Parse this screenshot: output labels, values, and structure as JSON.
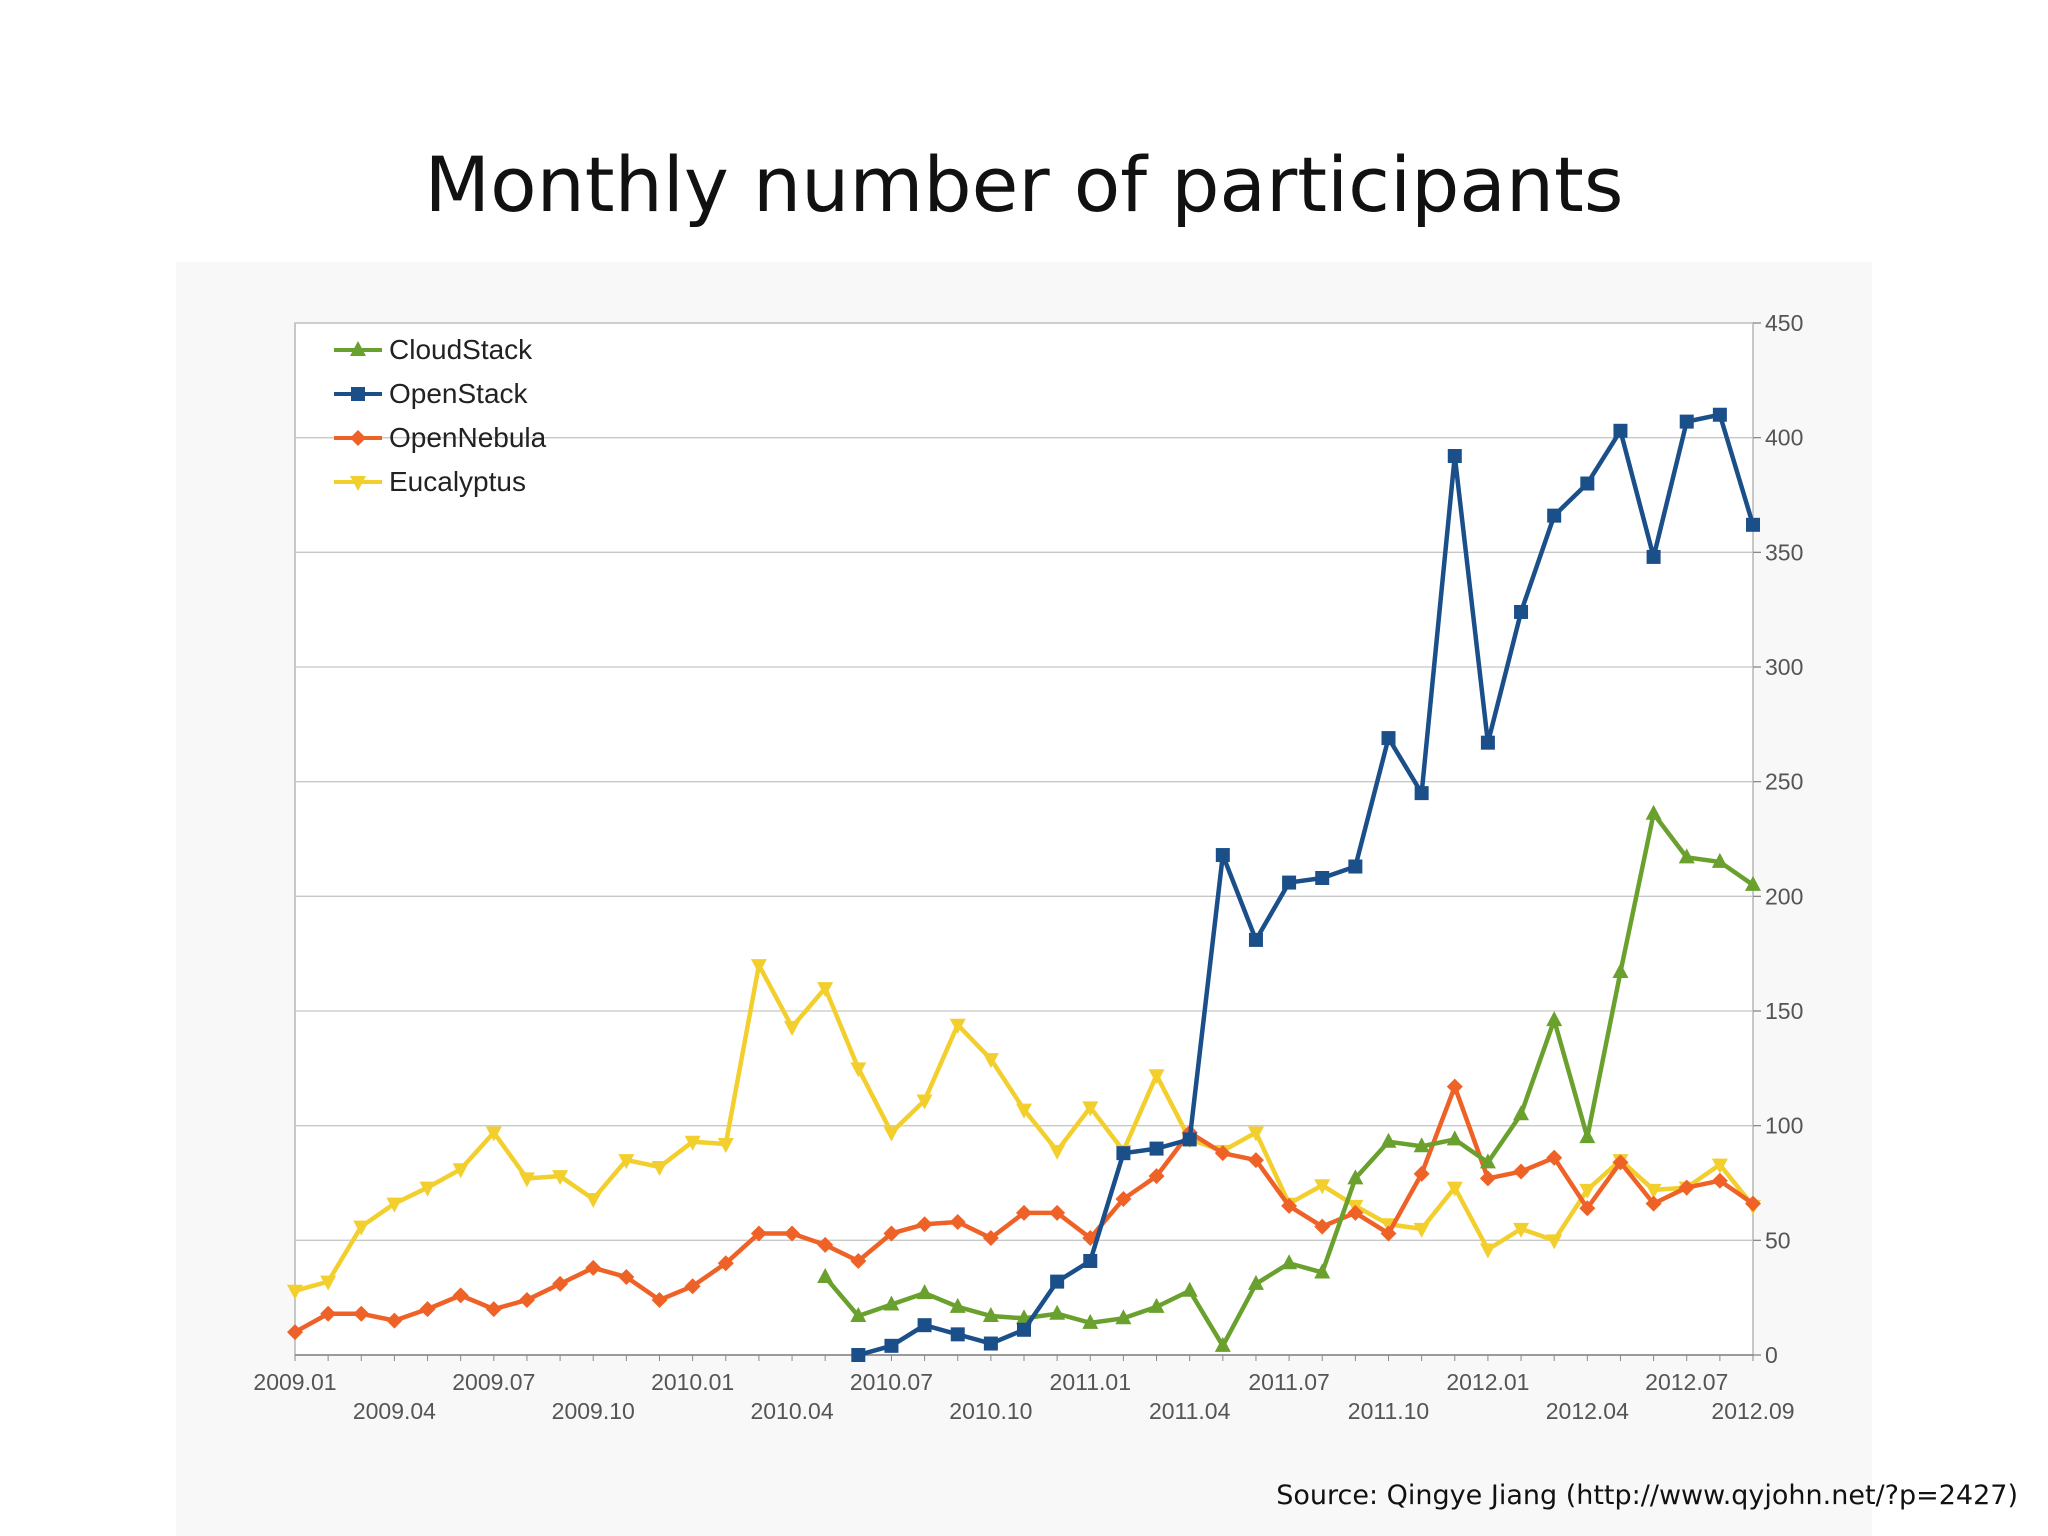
{
  "slide": {
    "title": "Monthly number of participants",
    "source": "Source: Qingye Jiang (http://www.qyjohn.net/?p=2427)"
  },
  "chart_data": {
    "type": "line",
    "title": "Monthly number of participants",
    "xlabel": "",
    "ylabel": "",
    "ylim": [
      0,
      450
    ],
    "yticks": [
      0,
      50,
      100,
      150,
      200,
      250,
      300,
      350,
      400,
      450
    ],
    "y_axis_side": "right",
    "grid": true,
    "legend": "top-left",
    "x_start": "2009.01",
    "x_tick_labels_row1": [
      {
        "month_index": 0,
        "label": "2009.01"
      },
      {
        "month_index": 6,
        "label": "2009.07"
      },
      {
        "month_index": 12,
        "label": "2010.01"
      },
      {
        "month_index": 18,
        "label": "2010.07"
      },
      {
        "month_index": 24,
        "label": "2011.01"
      },
      {
        "month_index": 30,
        "label": "2011.07"
      },
      {
        "month_index": 36,
        "label": "2012.01"
      },
      {
        "month_index": 42,
        "label": "2012.07"
      }
    ],
    "x_tick_labels_row2": [
      {
        "month_index": 3,
        "label": "2009.04"
      },
      {
        "month_index": 9,
        "label": "2009.10"
      },
      {
        "month_index": 15,
        "label": "2010.04"
      },
      {
        "month_index": 21,
        "label": "2010.10"
      },
      {
        "month_index": 27,
        "label": "2011.04"
      },
      {
        "month_index": 33,
        "label": "2011.10"
      },
      {
        "month_index": 39,
        "label": "2012.04"
      },
      {
        "month_index": 44,
        "label": "2012.09"
      }
    ],
    "series": [
      {
        "name": "CloudStack",
        "color": "#6aa12e",
        "marker": "triangle-up",
        "start_index": 16,
        "values": [
          34,
          17,
          22,
          27,
          21,
          17,
          16,
          18,
          14,
          16,
          21,
          28,
          4,
          31,
          40,
          36,
          77,
          93,
          91,
          94,
          84,
          105,
          146,
          95,
          167,
          236,
          217,
          215,
          205
        ]
      },
      {
        "name": "OpenStack",
        "color": "#1a4f8a",
        "marker": "square",
        "start_index": 17,
        "values": [
          0,
          4,
          13,
          9,
          5,
          11,
          32,
          41,
          88,
          90,
          94,
          218,
          181,
          206,
          208,
          213,
          269,
          245,
          392,
          267,
          324,
          366,
          380,
          403,
          348,
          407,
          410,
          362
        ]
      },
      {
        "name": "OpenNebula",
        "color": "#ef6227",
        "marker": "diamond",
        "start_index": 0,
        "values": [
          10,
          18,
          18,
          15,
          20,
          26,
          20,
          24,
          31,
          38,
          34,
          24,
          30,
          40,
          53,
          53,
          48,
          41,
          53,
          57,
          58,
          51,
          62,
          62,
          51,
          68,
          78,
          97,
          88,
          85,
          65,
          56,
          62,
          53,
          79,
          117,
          77,
          80,
          86,
          64,
          84,
          66,
          73,
          76,
          66
        ]
      },
      {
        "name": "Eucalyptus",
        "color": "#f2cf2d",
        "marker": "triangle-down",
        "start_index": 0,
        "values": [
          28,
          32,
          56,
          66,
          73,
          81,
          97,
          77,
          78,
          68,
          85,
          82,
          93,
          92,
          170,
          143,
          160,
          125,
          97,
          111,
          144,
          129,
          107,
          89,
          108,
          89,
          122,
          94,
          89,
          97,
          66,
          74,
          65,
          57,
          55,
          73,
          46,
          55,
          50,
          72,
          85,
          72,
          73,
          83,
          65
        ]
      }
    ]
  }
}
